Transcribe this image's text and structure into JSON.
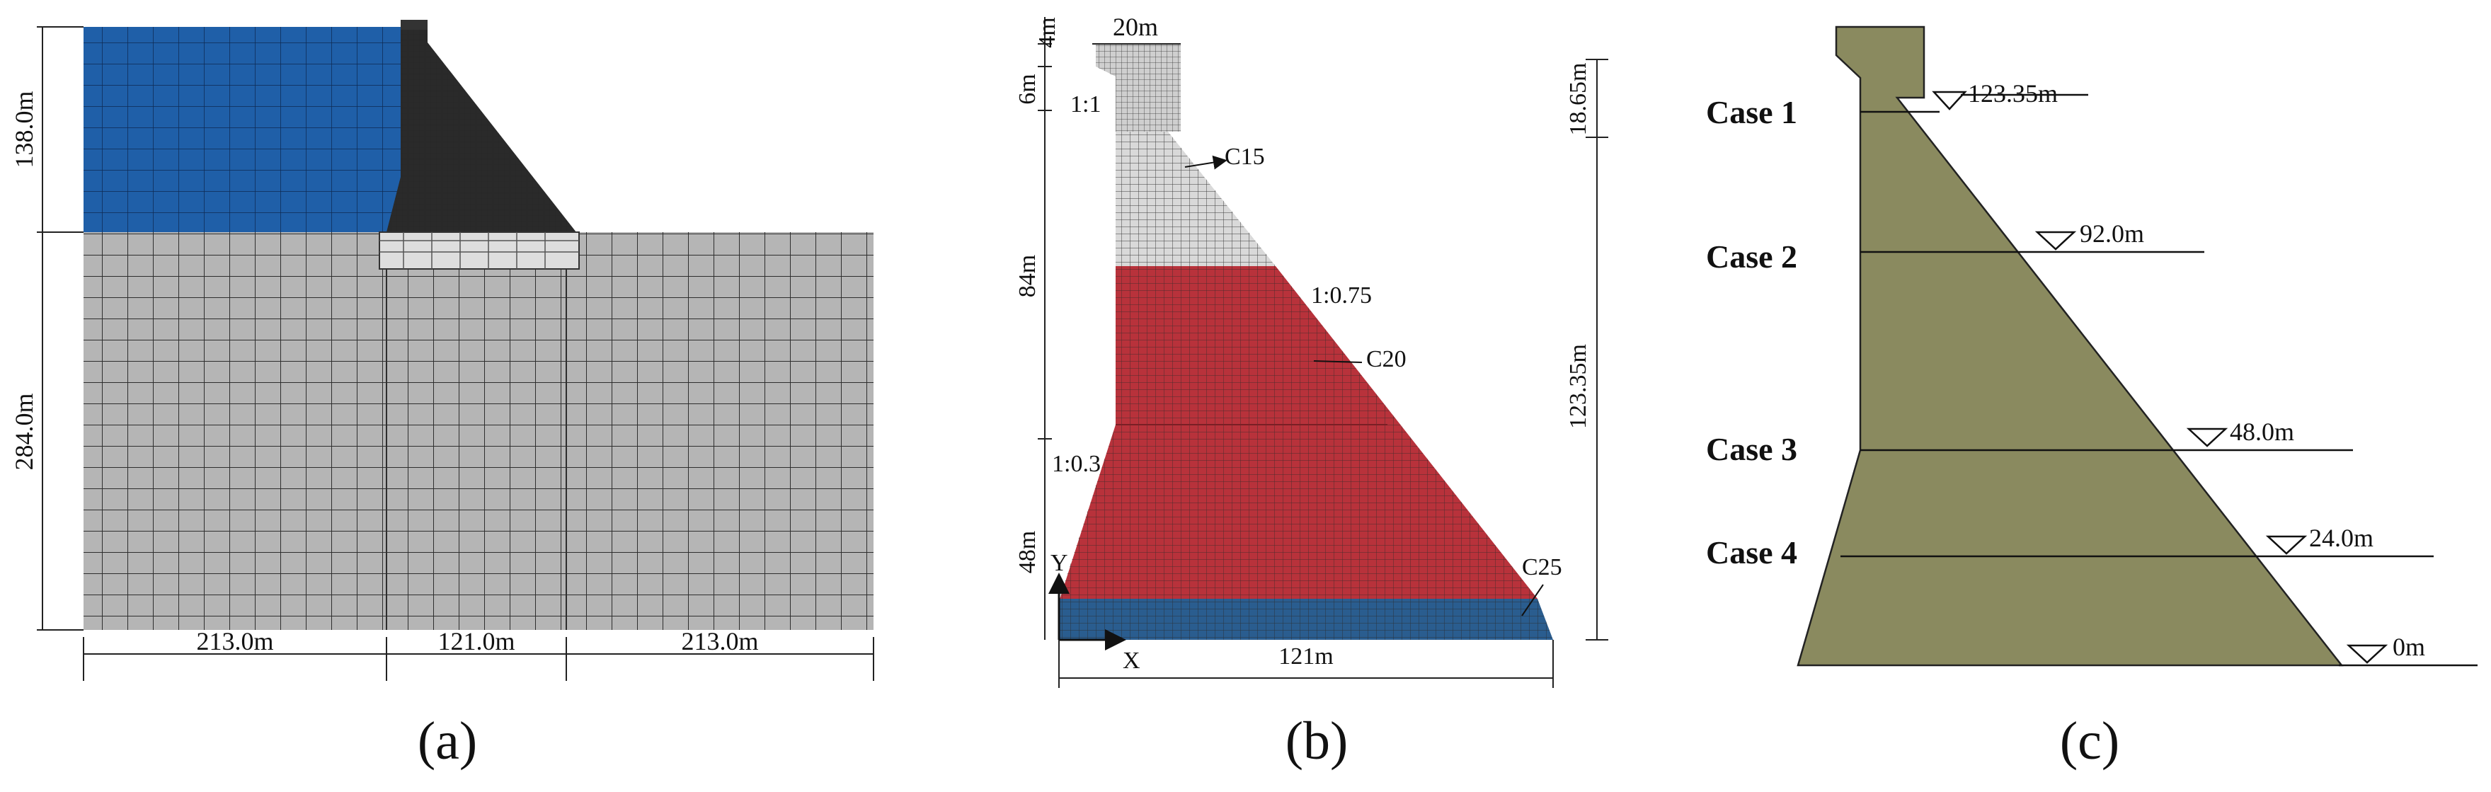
{
  "panel_a": {
    "label": "(a)",
    "dims": {
      "reservoir_height": "138.0m",
      "foundation_depth": "284.0m",
      "left_width": "213.0m",
      "dam_width": "121.0m",
      "right_width": "213.0m"
    },
    "colors": {
      "reservoir": "#1f5fa8",
      "foundation": "#b5b5b5",
      "dam": "#2a2a2a"
    }
  },
  "panel_b": {
    "label": "(b)",
    "dims": {
      "crest_width": "20m",
      "top_height": "4m",
      "upper_height": "6m",
      "mid_height": "84m",
      "lower_height": "48m",
      "base_width": "121m",
      "overflow_height": "18.65m",
      "water_height": "123.35m"
    },
    "slopes": {
      "upstream_top": "1:1",
      "downstream": "1:0.75",
      "upstream_bottom": "1:0.3"
    },
    "materials": {
      "c15": "C15",
      "c20": "C20",
      "c25": "C25"
    },
    "axes": {
      "x": "X",
      "y": "Y"
    },
    "colors": {
      "c15": "#d9d9d9",
      "c20": "#b8323b",
      "c25": "#2a5d8f"
    }
  },
  "panel_c": {
    "label": "(c)",
    "cases": [
      {
        "name": "Case 1",
        "level": "123.35m"
      },
      {
        "name": "Case 2",
        "level": "92.0m"
      },
      {
        "name": "Case 3",
        "level": "48.0m"
      },
      {
        "name": "Case 4",
        "level": "24.0m"
      }
    ],
    "base_level": "0m",
    "colors": {
      "dam": "#8a8a5f"
    }
  }
}
